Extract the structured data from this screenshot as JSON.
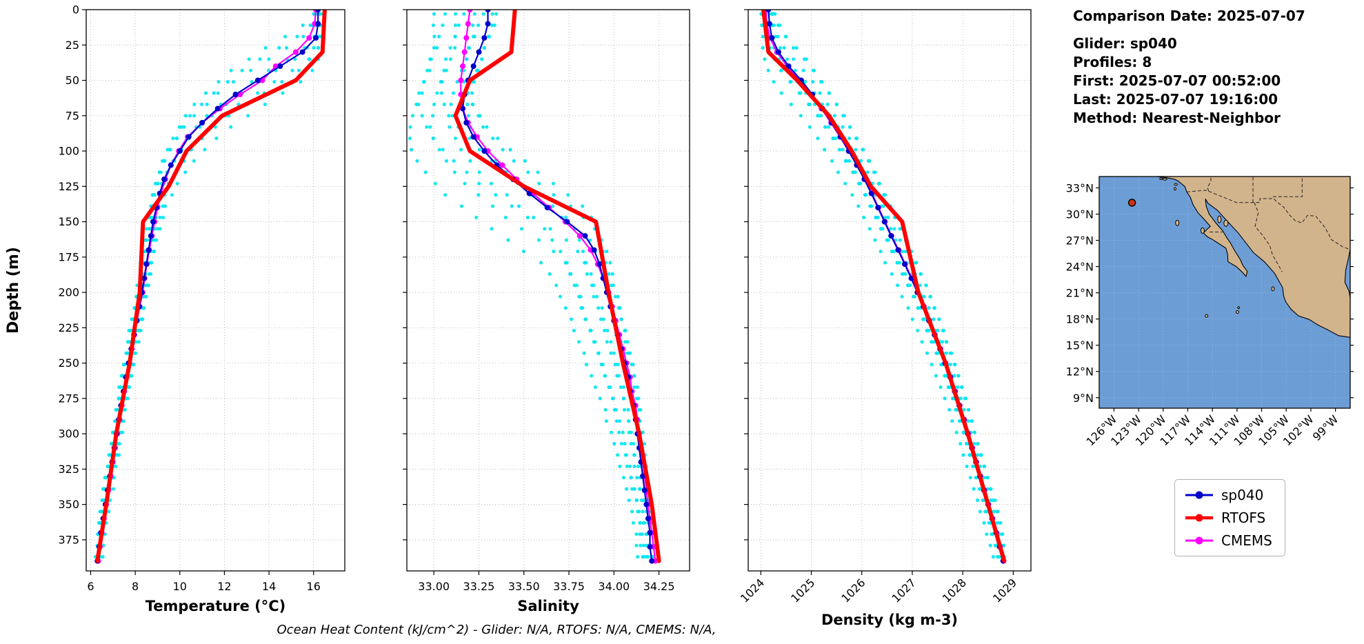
{
  "info": {
    "comparison_date": "Comparison Date: 2025-07-07",
    "glider": "Glider: sp040",
    "profiles": "Profiles: 8",
    "first": "First: 2025-07-07 00:52:00",
    "last": "Last: 2025-07-07 19:16:00",
    "method": "Method: Nearest-Neighbor"
  },
  "caption": "Ocean Heat Content (kJ/cm^2) - Glider: N/A,  RTOFS: N/A,  CMEMS: N/A,",
  "legend": {
    "items": [
      {
        "label": "sp040",
        "color": "#0000cd",
        "line_width": 3
      },
      {
        "label": "RTOFS",
        "color": "#ff0000",
        "line_width": 4.5
      },
      {
        "label": "CMEMS",
        "color": "#ff00ff",
        "line_width": 3
      }
    ]
  },
  "map": {
    "extent": {
      "lon": [
        -127.8,
        -97.2
      ],
      "lat": [
        7.8,
        34.3
      ]
    },
    "lat_ticks": [
      {
        "value": 33,
        "label": "33°N"
      },
      {
        "value": 30,
        "label": "30°N"
      },
      {
        "value": 27,
        "label": "27°N"
      },
      {
        "value": 24,
        "label": "24°N"
      },
      {
        "value": 21,
        "label": "21°N"
      },
      {
        "value": 18,
        "label": "18°N"
      },
      {
        "value": 15,
        "label": "15°N"
      },
      {
        "value": 12,
        "label": "12°N"
      },
      {
        "value": 9,
        "label": "9°N"
      }
    ],
    "lon_ticks": [
      {
        "value": -126,
        "label": "126°W"
      },
      {
        "value": -123,
        "label": "123°W"
      },
      {
        "value": -120,
        "label": "120°W"
      },
      {
        "value": -117,
        "label": "117°W"
      },
      {
        "value": -114,
        "label": "114°W"
      },
      {
        "value": -111,
        "label": "111°W"
      },
      {
        "value": -108,
        "label": "108°W"
      },
      {
        "value": -105,
        "label": "105°W"
      },
      {
        "value": -102,
        "label": "102°W"
      },
      {
        "value": -99,
        "label": "99°W"
      }
    ],
    "marker": {
      "lon": -123.8,
      "lat": 31.3,
      "color": "#cc3311"
    },
    "ocean_color": "#6d9dd5",
    "land_color": "#d2b48c"
  },
  "chart_data": [
    {
      "id": "temperature",
      "type": "scatter",
      "xlabel": "Temperature (°C)",
      "ylabel": "Depth (m)",
      "xlim": [
        5.8,
        17.4
      ],
      "ylim": [
        0,
        397
      ],
      "grid": true,
      "show_ytick_labels": true,
      "xtick_rotation": 0,
      "xticks": [
        6,
        8,
        10,
        12,
        14,
        16
      ],
      "xtick_labels": [
        "6",
        "8",
        "10",
        "12",
        "14",
        "16"
      ],
      "yticks": [
        0,
        25,
        50,
        75,
        100,
        125,
        150,
        175,
        200,
        225,
        250,
        275,
        300,
        325,
        350,
        375
      ],
      "ytick_labels": [
        "0",
        "25",
        "50",
        "75",
        "100",
        "125",
        "150",
        "175",
        "200",
        "225",
        "250",
        "275",
        "300",
        "325",
        "350",
        "375"
      ],
      "series": [
        {
          "name": "sp040",
          "color": "#0000cd",
          "style": "line+markers",
          "line_width": 2.2,
          "marker_size": 4,
          "zorder": 3,
          "depths": [
            0,
            10,
            20,
            30,
            40,
            50,
            60,
            70,
            80,
            90,
            100,
            110,
            120,
            130,
            140,
            150,
            160,
            170,
            180,
            190,
            200,
            210,
            220,
            230,
            240,
            250,
            260,
            270,
            280,
            290,
            300,
            310,
            320,
            330,
            340,
            350,
            360,
            370,
            380,
            390
          ],
          "values": [
            16.2,
            16.2,
            16.1,
            15.5,
            14.5,
            13.5,
            12.5,
            11.7,
            11.0,
            10.4,
            10.0,
            9.6,
            9.3,
            9.1,
            8.95,
            8.8,
            8.7,
            8.6,
            8.5,
            8.4,
            8.3,
            8.18,
            8.06,
            7.94,
            7.82,
            7.7,
            7.58,
            7.47,
            7.36,
            7.26,
            7.16,
            7.06,
            6.96,
            6.86,
            6.76,
            6.66,
            6.56,
            6.46,
            6.38,
            6.3
          ]
        },
        {
          "name": "RTOFS",
          "color": "#ff0000",
          "style": "line",
          "line_width": 6,
          "marker_size": 0,
          "zorder": 4,
          "depths": [
            0,
            30,
            50,
            75,
            100,
            125,
            150,
            200,
            250,
            300,
            350,
            390
          ],
          "values": [
            16.5,
            16.4,
            15.2,
            11.9,
            10.3,
            9.5,
            8.35,
            8.2,
            7.75,
            7.15,
            6.7,
            6.3
          ]
        },
        {
          "name": "CMEMS",
          "color": "#ff00ff",
          "style": "line+markers",
          "line_width": 2.2,
          "marker_size": 4,
          "zorder": 2,
          "depths": [
            0,
            10,
            20,
            30,
            40,
            50,
            60,
            70,
            80,
            90,
            100,
            110,
            120,
            130,
            140,
            150,
            160,
            170,
            180,
            190,
            200,
            210,
            220,
            230,
            240,
            250,
            260,
            270,
            280,
            290,
            300,
            310,
            320,
            330,
            340,
            350,
            360,
            370,
            380,
            390
          ],
          "values": [
            16.1,
            16.05,
            15.8,
            15.2,
            14.3,
            13.7,
            12.7,
            11.8,
            11.0,
            10.35,
            9.95,
            9.6,
            9.35,
            9.15,
            9.0,
            8.87,
            8.75,
            8.63,
            8.52,
            8.42,
            8.33,
            8.2,
            8.08,
            7.96,
            7.85,
            7.74,
            7.62,
            7.51,
            7.4,
            7.3,
            7.2,
            7.1,
            7.0,
            6.9,
            6.8,
            6.7,
            6.6,
            6.5,
            6.42,
            6.34
          ]
        },
        {
          "name": "glider raw profiles",
          "color": "#00e5ee",
          "style": "scatter",
          "marker_size": 2.6,
          "zorder": 1,
          "derived_from": "sp040",
          "depth_shifts": [
            -20,
            -13,
            -7,
            -2,
            3,
            8,
            14,
            20
          ],
          "depth_step": 8,
          "value_jitter": 0.1,
          "profile_value_offsets": [
            0.05,
            -0.12,
            0.15,
            -0.05,
            0.1,
            -0.18,
            0.02,
            0.08
          ]
        }
      ]
    },
    {
      "id": "salinity",
      "type": "scatter",
      "xlabel": "Salinity",
      "ylabel": "",
      "xlim": [
        32.85,
        34.42
      ],
      "ylim": [
        0,
        397
      ],
      "grid": true,
      "show_ytick_labels": false,
      "xtick_rotation": 0,
      "xticks": [
        33.0,
        33.25,
        33.5,
        33.75,
        34.0,
        34.25
      ],
      "xtick_labels": [
        "33.00",
        "33.25",
        "33.50",
        "33.75",
        "34.00",
        "34.25"
      ],
      "yticks": [
        0,
        25,
        50,
        75,
        100,
        125,
        150,
        175,
        200,
        225,
        250,
        275,
        300,
        325,
        350,
        375
      ],
      "ytick_labels": [
        "0",
        "25",
        "50",
        "75",
        "100",
        "125",
        "150",
        "175",
        "200",
        "225",
        "250",
        "275",
        "300",
        "325",
        "350",
        "375"
      ],
      "series": [
        {
          "name": "sp040",
          "color": "#0000cd",
          "style": "line+markers",
          "line_width": 2.2,
          "marker_size": 4,
          "zorder": 3,
          "depths": [
            0,
            10,
            20,
            30,
            40,
            50,
            60,
            70,
            80,
            90,
            100,
            110,
            120,
            130,
            140,
            150,
            160,
            170,
            180,
            190,
            200,
            210,
            220,
            230,
            240,
            250,
            260,
            270,
            280,
            290,
            300,
            310,
            320,
            330,
            340,
            350,
            360,
            370,
            380,
            390
          ],
          "values": [
            33.3,
            33.3,
            33.28,
            33.25,
            33.22,
            33.19,
            33.17,
            33.16,
            33.18,
            33.22,
            33.28,
            33.35,
            33.44,
            33.53,
            33.63,
            33.74,
            33.84,
            33.89,
            33.92,
            33.94,
            33.96,
            33.98,
            34.0,
            34.02,
            34.04,
            34.06,
            34.08,
            34.09,
            34.11,
            34.12,
            34.13,
            34.14,
            34.15,
            34.16,
            34.17,
            34.18,
            34.19,
            34.2,
            34.2,
            34.21
          ]
        },
        {
          "name": "RTOFS",
          "color": "#ff0000",
          "style": "line",
          "line_width": 6,
          "marker_size": 0,
          "zorder": 4,
          "depths": [
            0,
            30,
            50,
            75,
            100,
            125,
            150,
            200,
            250,
            300,
            350,
            390
          ],
          "values": [
            33.45,
            33.43,
            33.2,
            33.12,
            33.2,
            33.5,
            33.9,
            33.97,
            34.05,
            34.14,
            34.21,
            34.25
          ]
        },
        {
          "name": "CMEMS",
          "color": "#ff00ff",
          "style": "line+markers",
          "line_width": 2.2,
          "marker_size": 4,
          "zorder": 2,
          "depths": [
            0,
            10,
            20,
            30,
            40,
            50,
            60,
            70,
            80,
            90,
            100,
            110,
            120,
            130,
            140,
            150,
            160,
            170,
            180,
            190,
            200,
            210,
            220,
            230,
            240,
            250,
            260,
            270,
            280,
            290,
            300,
            310,
            320,
            330,
            340,
            350,
            360,
            370,
            380,
            390
          ],
          "values": [
            33.2,
            33.19,
            33.18,
            33.17,
            33.16,
            33.15,
            33.15,
            33.16,
            33.19,
            33.24,
            33.3,
            33.38,
            33.46,
            33.55,
            33.64,
            33.73,
            33.81,
            33.87,
            33.91,
            33.94,
            33.97,
            33.99,
            34.01,
            34.03,
            34.05,
            34.07,
            34.09,
            34.1,
            34.12,
            34.13,
            34.14,
            34.15,
            34.16,
            34.17,
            34.18,
            34.19,
            34.2,
            34.21,
            34.22,
            34.23
          ]
        },
        {
          "name": "glider raw profiles",
          "color": "#00e5ee",
          "style": "scatter",
          "marker_size": 2.6,
          "zorder": 1,
          "derived_from": "sp040",
          "depth_shifts": [
            -20,
            -13,
            -7,
            -2,
            3,
            8,
            14,
            20
          ],
          "depth_step": 8,
          "value_jitter": 0.015,
          "profile_value_offsets": [
            -0.3,
            -0.18,
            -0.08,
            0.02,
            -0.24,
            0.05,
            -0.12,
            0.0
          ]
        }
      ]
    },
    {
      "id": "density",
      "type": "scatter",
      "xlabel": "Density (kg m-3)",
      "ylabel": "",
      "xlim": [
        1023.75,
        1029.35
      ],
      "ylim": [
        0,
        397
      ],
      "grid": true,
      "show_ytick_labels": false,
      "xtick_rotation": -45,
      "xticks": [
        1024,
        1025,
        1026,
        1027,
        1028,
        1029
      ],
      "xtick_labels": [
        "1024",
        "1025",
        "1026",
        "1027",
        "1028",
        "1029"
      ],
      "yticks": [
        0,
        25,
        50,
        75,
        100,
        125,
        150,
        175,
        200,
        225,
        250,
        275,
        300,
        325,
        350,
        375
      ],
      "ytick_labels": [
        "0",
        "25",
        "50",
        "75",
        "100",
        "125",
        "150",
        "175",
        "200",
        "225",
        "250",
        "275",
        "300",
        "325",
        "350",
        "375"
      ],
      "series": [
        {
          "name": "sp040",
          "color": "#0000cd",
          "style": "line+markers",
          "line_width": 2.2,
          "marker_size": 4,
          "zorder": 3,
          "depths": [
            0,
            10,
            20,
            30,
            40,
            50,
            60,
            70,
            80,
            90,
            100,
            110,
            120,
            130,
            140,
            150,
            160,
            170,
            180,
            190,
            200,
            210,
            220,
            230,
            240,
            250,
            260,
            270,
            280,
            290,
            300,
            310,
            320,
            330,
            340,
            350,
            360,
            370,
            380,
            390
          ],
          "values": [
            1024.15,
            1024.17,
            1024.22,
            1024.35,
            1024.55,
            1024.8,
            1025.02,
            1025.22,
            1025.4,
            1025.58,
            1025.74,
            1025.9,
            1026.05,
            1026.19,
            1026.32,
            1026.45,
            1026.58,
            1026.72,
            1026.85,
            1026.98,
            1027.1,
            1027.22,
            1027.33,
            1027.44,
            1027.55,
            1027.65,
            1027.75,
            1027.84,
            1027.93,
            1028.02,
            1028.1,
            1028.18,
            1028.26,
            1028.34,
            1028.42,
            1028.5,
            1028.58,
            1028.66,
            1028.73,
            1028.8
          ]
        },
        {
          "name": "RTOFS",
          "color": "#ff0000",
          "style": "line",
          "line_width": 6,
          "marker_size": 0,
          "zorder": 4,
          "depths": [
            0,
            30,
            50,
            75,
            100,
            125,
            150,
            200,
            250,
            300,
            350,
            390
          ],
          "values": [
            1024.05,
            1024.15,
            1024.72,
            1025.35,
            1025.8,
            1026.18,
            1026.8,
            1027.12,
            1027.66,
            1028.1,
            1028.5,
            1028.82
          ]
        },
        {
          "name": "CMEMS",
          "color": "#ff00ff",
          "style": "line+markers",
          "line_width": 2.2,
          "marker_size": 4,
          "zorder": 2,
          "depths": [
            0,
            10,
            20,
            30,
            40,
            50,
            60,
            70,
            80,
            90,
            100,
            110,
            120,
            130,
            140,
            150,
            160,
            170,
            180,
            190,
            200,
            210,
            220,
            230,
            240,
            250,
            260,
            270,
            280,
            290,
            300,
            310,
            320,
            330,
            340,
            350,
            360,
            370,
            380,
            390
          ],
          "values": [
            1024.1,
            1024.12,
            1024.18,
            1024.32,
            1024.52,
            1024.78,
            1025.0,
            1025.2,
            1025.39,
            1025.57,
            1025.74,
            1025.91,
            1026.06,
            1026.2,
            1026.33,
            1026.46,
            1026.59,
            1026.73,
            1026.86,
            1026.99,
            1027.11,
            1027.23,
            1027.34,
            1027.45,
            1027.56,
            1027.66,
            1027.76,
            1027.85,
            1027.94,
            1028.03,
            1028.11,
            1028.19,
            1028.27,
            1028.35,
            1028.43,
            1028.51,
            1028.59,
            1028.67,
            1028.74,
            1028.81
          ]
        },
        {
          "name": "glider raw profiles",
          "color": "#00e5ee",
          "style": "scatter",
          "marker_size": 2.6,
          "zorder": 1,
          "derived_from": "sp040",
          "depth_shifts": [
            -20,
            -13,
            -7,
            -2,
            3,
            8,
            14,
            20
          ],
          "depth_step": 8,
          "value_jitter": 0.025,
          "profile_value_offsets": [
            -0.12,
            0.06,
            -0.05,
            0.1,
            -0.16,
            0.02,
            0.08,
            -0.02
          ]
        }
      ]
    }
  ]
}
